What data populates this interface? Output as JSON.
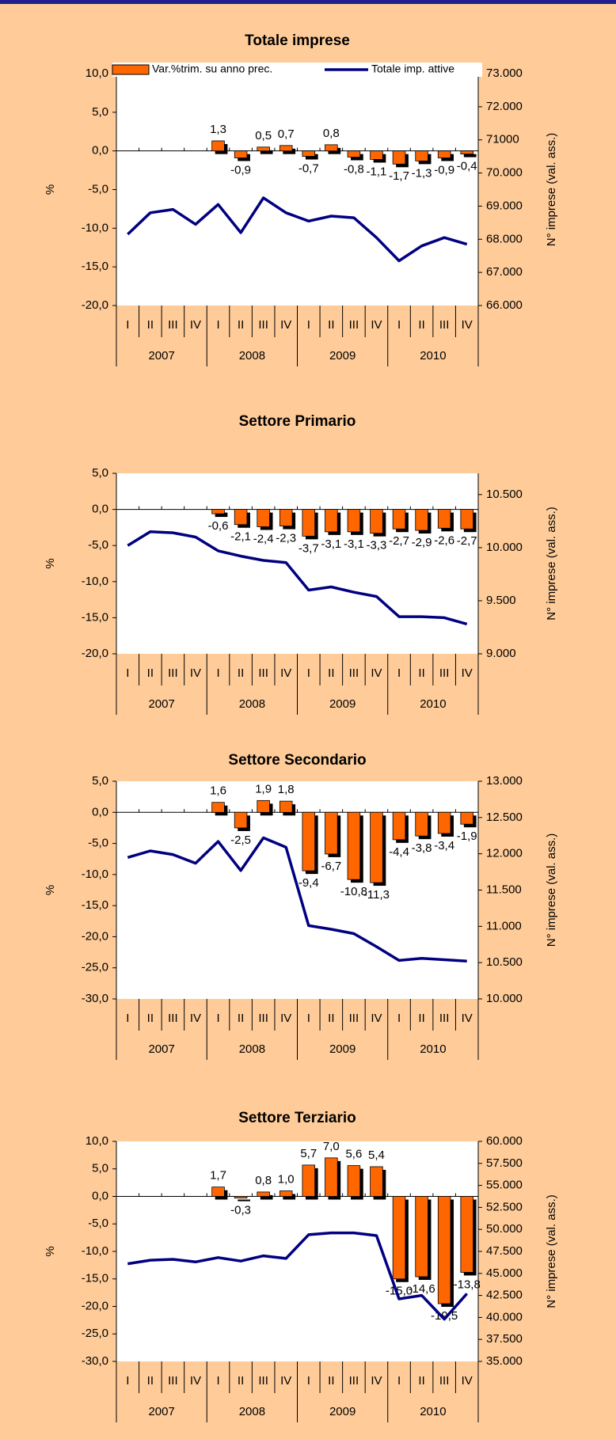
{
  "chart_data": [
    {
      "type": "combo",
      "title": "Totale imprese",
      "ylabel": "%",
      "y2label": "N° imprese (val. ass.)",
      "categories": [
        "I",
        "II",
        "III",
        "IV",
        "I",
        "II",
        "III",
        "IV",
        "I",
        "II",
        "III",
        "IV",
        "I",
        "II",
        "III",
        "IV"
      ],
      "groups": [
        "2007",
        "2008",
        "2009",
        "2010"
      ],
      "ylim": [
        -20,
        10
      ],
      "yticks": [
        {
          "value": 10,
          "label": "10,0"
        },
        {
          "value": 5,
          "label": "5,0"
        },
        {
          "value": 0,
          "label": "0,0"
        },
        {
          "value": -5,
          "label": "-5,0"
        },
        {
          "value": -10,
          "label": "-10,0"
        },
        {
          "value": -15,
          "label": "-15,0"
        },
        {
          "value": -20,
          "label": "-20,0"
        }
      ],
      "y2lim": [
        66000,
        73000
      ],
      "y2ticks": [
        {
          "value": 73000,
          "label": "73.000"
        },
        {
          "value": 72000,
          "label": "72.000"
        },
        71000,
        {
          "value": 70000,
          "label": "70.000"
        },
        {
          "value": 69000,
          "label": "69.000"
        },
        {
          "value": 68000,
          "label": "68.000"
        },
        {
          "value": 67000,
          "label": "67.000"
        },
        {
          "value": 66000,
          "label": "66.000"
        }
      ],
      "series": [
        {
          "name": "Var.%trim. su anno prec.",
          "type": "bar",
          "color": "#ff6600",
          "values": [
            null,
            null,
            null,
            null,
            1.3,
            -0.9,
            0.5,
            0.7,
            -0.7,
            0.8,
            -0.8,
            -1.1,
            -1.7,
            -1.3,
            -0.9,
            -0.4
          ],
          "value_labels": [
            null,
            null,
            null,
            null,
            "1,3",
            "-0,9",
            "0,5",
            "0,7",
            "-0,7",
            "0,8",
            "-0,8",
            "-1,1",
            "-1,7",
            "-1,3",
            "-0,9",
            "-0,4"
          ]
        },
        {
          "name": "Totale imp. attive",
          "type": "line",
          "axis": "y2",
          "color": "#000080",
          "values": [
            68150,
            68800,
            68900,
            68450,
            69050,
            68200,
            69250,
            68800,
            68550,
            68700,
            68650,
            68050,
            67350,
            67800,
            68050,
            67850
          ]
        }
      ]
    },
    {
      "type": "combo",
      "title": "Settore Primario",
      "ylabel": "%",
      "y2label": "N° imprese (val. ass.)",
      "categories": [
        "I",
        "II",
        "III",
        "IV",
        "I",
        "II",
        "III",
        "IV",
        "I",
        "II",
        "III",
        "IV",
        "I",
        "II",
        "III",
        "IV"
      ],
      "groups": [
        "2007",
        "2008",
        "2009",
        "2010"
      ],
      "ylim": [
        -20,
        5
      ],
      "yticks": [
        {
          "value": 5,
          "label": "5,0"
        },
        {
          "value": 0,
          "label": "0,0"
        },
        {
          "value": -5,
          "label": "-5,0"
        },
        {
          "value": -10,
          "label": "-10,0"
        },
        {
          "value": -15,
          "label": "-15,0"
        },
        {
          "value": -20,
          "label": "-20,0"
        }
      ],
      "y2lim": [
        9000,
        10700
      ],
      "y2ticks": [
        {
          "value": 10500,
          "label": "10.500"
        },
        {
          "value": 10000,
          "label": "10.000"
        },
        {
          "value": 9500,
          "label": "9.500"
        },
        {
          "value": 9000,
          "label": "9.000"
        }
      ],
      "series": [
        {
          "type": "bar",
          "color": "#ff6600",
          "values": [
            null,
            null,
            null,
            null,
            -0.6,
            -2.1,
            -2.4,
            -2.3,
            -3.7,
            -3.1,
            -3.1,
            -3.3,
            -2.7,
            -2.9,
            -2.6,
            -2.7
          ],
          "value_labels": [
            null,
            null,
            null,
            null,
            "-0,6",
            "-2,1",
            "-2,4",
            "-2,3",
            "-3,7",
            "-3,1",
            "-3,1",
            "-3,3",
            "-2,7",
            "-2,9",
            "-2,6",
            "-2,7"
          ]
        },
        {
          "type": "line",
          "axis": "y2",
          "color": "#000080",
          "values": [
            10020,
            10150,
            10140,
            10100,
            9970,
            9920,
            9880,
            9860,
            9600,
            9630,
            9580,
            9540,
            9350,
            9350,
            9340,
            9280
          ]
        }
      ]
    },
    {
      "type": "combo",
      "title": "Settore Secondario",
      "ylabel": "%",
      "y2label": "N° imprese (val. ass.)",
      "categories": [
        "I",
        "II",
        "III",
        "IV",
        "I",
        "II",
        "III",
        "IV",
        "I",
        "II",
        "III",
        "IV",
        "I",
        "II",
        "III",
        "IV"
      ],
      "groups": [
        "2007",
        "2008",
        "2009",
        "2010"
      ],
      "ylim": [
        -30,
        5
      ],
      "yticks": [
        {
          "value": 5,
          "label": "5,0"
        },
        {
          "value": 0,
          "label": "0,0"
        },
        {
          "value": -5,
          "label": "-5,0"
        },
        {
          "value": -10,
          "label": "-10,0"
        },
        {
          "value": -15,
          "label": "-15,0"
        },
        {
          "value": -20,
          "label": "-20,0"
        },
        {
          "value": -25,
          "label": "-25,0"
        },
        {
          "value": -30,
          "label": "-30,0"
        }
      ],
      "y2lim": [
        10000,
        13000
      ],
      "y2ticks": [
        {
          "value": 13000,
          "label": "13.000"
        },
        {
          "value": 12500,
          "label": "12.500"
        },
        {
          "value": 12000,
          "label": "12.000"
        },
        {
          "value": 11500,
          "label": "11.500"
        },
        {
          "value": 11000,
          "label": "11.000"
        },
        {
          "value": 10500,
          "label": "10.500"
        },
        {
          "value": 10000,
          "label": "10.000"
        }
      ],
      "series": [
        {
          "type": "bar",
          "color": "#ff6600",
          "values": [
            null,
            null,
            null,
            null,
            1.6,
            -2.5,
            1.9,
            1.8,
            -9.4,
            -6.7,
            -10.8,
            -11.3,
            -4.4,
            -3.8,
            -3.4,
            -1.9
          ],
          "value_labels": [
            null,
            null,
            null,
            null,
            "1,6",
            "-2,5",
            "1,9",
            "1,8",
            "-9,4",
            "-6,7",
            "-10,8",
            "-11,3",
            "-4,4",
            "-3,8",
            "-3,4",
            "-1,9"
          ]
        },
        {
          "type": "line",
          "axis": "y2",
          "color": "#000080",
          "values": [
            11950,
            12040,
            11990,
            11870,
            12170,
            11770,
            12220,
            12090,
            11010,
            10960,
            10900,
            10720,
            10530,
            10560,
            10540,
            10520
          ]
        }
      ]
    },
    {
      "type": "combo",
      "title": "Settore Terziario",
      "ylabel": "%",
      "y2label": "N° imprese (val. ass.)",
      "categories": [
        "I",
        "II",
        "III",
        "IV",
        "I",
        "II",
        "III",
        "IV",
        "I",
        "II",
        "III",
        "IV",
        "I",
        "II",
        "III",
        "IV"
      ],
      "groups": [
        "2007",
        "2008",
        "2009",
        "2010"
      ],
      "ylim": [
        -30,
        10
      ],
      "yticks": [
        {
          "value": 10,
          "label": "10,0"
        },
        {
          "value": 5,
          "label": "5,0"
        },
        {
          "value": 0,
          "label": "0,0"
        },
        {
          "value": -5,
          "label": "-5,0"
        },
        {
          "value": -10,
          "label": "-10,0"
        },
        {
          "value": -15,
          "label": "-15,0"
        },
        {
          "value": -20,
          "label": "-20,0"
        },
        {
          "value": -25,
          "label": "-25,0"
        },
        {
          "value": -30,
          "label": "-30,0"
        }
      ],
      "y2lim": [
        35000,
        60000
      ],
      "y2ticks": [
        {
          "value": 60000,
          "label": "60.000"
        },
        {
          "value": 57500,
          "label": "57.500"
        },
        {
          "value": 55000,
          "label": "55.000"
        },
        {
          "value": 52500,
          "label": "52.500"
        },
        {
          "value": 50000,
          "label": "50.000"
        },
        {
          "value": 47500,
          "label": "47.500"
        },
        {
          "value": 45000,
          "label": "45.000"
        },
        {
          "value": 42500,
          "label": "42.500"
        },
        {
          "value": 40000,
          "label": "40.000"
        },
        {
          "value": 37500,
          "label": "37.500"
        },
        {
          "value": 35000,
          "label": "35.000"
        }
      ],
      "series": [
        {
          "type": "bar",
          "color": "#ff6600",
          "values": [
            null,
            null,
            null,
            null,
            1.7,
            -0.3,
            0.8,
            1.0,
            5.7,
            7.0,
            5.6,
            5.4,
            -15.0,
            -14.6,
            -19.5,
            -13.8
          ],
          "value_labels": [
            null,
            null,
            null,
            null,
            "1,7",
            "-0,3",
            "0,8",
            "1,0",
            "5,7",
            "7,0",
            "5,6",
            "5,4",
            "-15,0",
            "-14,6",
            "-19,5",
            "-13,8"
          ]
        },
        {
          "type": "line",
          "axis": "y2",
          "color": "#000080",
          "values": [
            46100,
            46500,
            46600,
            46300,
            46800,
            46400,
            47000,
            46700,
            49400,
            49600,
            49600,
            49300,
            42100,
            42500,
            39800,
            42700
          ]
        }
      ]
    }
  ]
}
